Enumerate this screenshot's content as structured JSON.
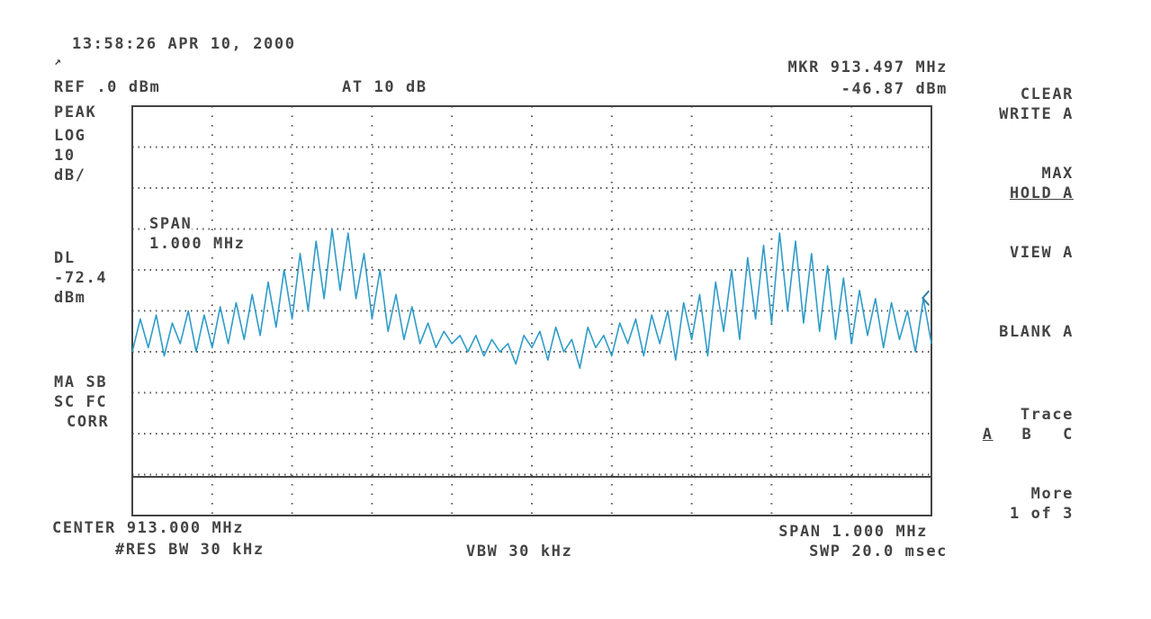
{
  "header": {
    "timestamp": "13:58:26 APR 10, 2000",
    "ref_level": "REF .0 dBm",
    "attenuation": "AT 10 dB",
    "marker_freq": "MKR 913.497 MHz",
    "marker_level": "-46.87 dBm"
  },
  "left_panel": {
    "detector": "PEAK",
    "scale_line1": "LOG",
    "scale_line2": "10",
    "scale_line3": "dB/",
    "span_line1": "SPAN",
    "span_line2": "1.000 MHz",
    "dl_line1": "DL",
    "dl_line2": "-72.4",
    "dl_line3": "dBm",
    "flags_line1": "MA SB",
    "flags_line2": "SC FC",
    "flags_line3": "CORR"
  },
  "footer": {
    "center": "CENTER 913.000 MHz",
    "res_bw": "#RES BW 30 kHz",
    "vbw": "VBW 30 kHz",
    "span": "SPAN 1.000 MHz",
    "sweep": "SWP 20.0 msec"
  },
  "softkeys": {
    "clear_write_1": "CLEAR",
    "clear_write_2": "WRITE A",
    "max_hold_1": "MAX",
    "max_hold_2": "HOLD A",
    "view": "VIEW A",
    "blank": "BLANK A",
    "trace_1": "Trace",
    "trace_a": "A",
    "trace_b": "B",
    "trace_c": "C",
    "more_1": "More",
    "more_2": "1 of 3"
  },
  "colors": {
    "trace": "#2e9cc8",
    "frame": "#444444",
    "grid": "#555555"
  },
  "chart_data": {
    "type": "line",
    "xlabel": "",
    "ylabel": "",
    "xlim": [
      912.5,
      913.5
    ],
    "ylim": [
      -100,
      0
    ],
    "x_unit": "MHz",
    "y_unit": "dBm",
    "display_line": -72.4,
    "marker": {
      "x": 913.497,
      "y": -46.87
    },
    "series": [
      {
        "x": [
          912.5,
          912.51,
          912.52,
          912.53,
          912.54,
          912.55,
          912.56,
          912.57,
          912.58,
          912.59,
          912.6,
          912.61,
          912.62,
          912.63,
          912.64,
          912.65,
          912.66,
          912.67,
          912.68,
          912.69,
          912.7,
          912.71,
          912.72,
          912.73,
          912.74,
          912.75,
          912.76,
          912.77,
          912.78,
          912.79,
          912.8,
          912.81,
          912.82,
          912.83,
          912.84,
          912.85,
          912.86,
          912.87,
          912.88,
          912.89,
          912.9,
          912.91,
          912.92,
          912.93,
          912.94,
          912.95,
          912.96,
          912.97,
          912.98,
          912.99,
          913.0,
          913.01,
          913.02,
          913.03,
          913.04,
          913.05,
          913.06,
          913.07,
          913.08,
          913.09,
          913.1,
          913.11,
          913.12,
          913.13,
          913.14,
          913.15,
          913.16,
          913.17,
          913.18,
          913.19,
          913.2,
          913.21,
          913.22,
          913.23,
          913.24,
          913.25,
          913.26,
          913.27,
          913.28,
          913.29,
          913.3,
          913.31,
          913.32,
          913.33,
          913.34,
          913.35,
          913.36,
          913.37,
          913.38,
          913.39,
          913.4,
          913.41,
          913.42,
          913.43,
          913.44,
          913.45,
          913.46,
          913.47,
          913.48,
          913.49,
          913.5
        ],
        "values": [
          -60,
          -52,
          -59,
          -51,
          -61,
          -53,
          -58,
          -50,
          -60,
          -51,
          -59,
          -49,
          -58,
          -48,
          -57,
          -46,
          -56,
          -43,
          -54,
          -40,
          -52,
          -36,
          -50,
          -33,
          -47,
          -30,
          -45,
          -31,
          -47,
          -36,
          -52,
          -40,
          -55,
          -46,
          -57,
          -49,
          -58,
          -53,
          -59,
          -55,
          -58,
          -56,
          -60,
          -56,
          -61,
          -57,
          -60,
          -58,
          -63,
          -56,
          -59,
          -55,
          -62,
          -54,
          -60,
          -57,
          -64,
          -54,
          -59,
          -56,
          -61,
          -53,
          -58,
          -52,
          -61,
          -51,
          -58,
          -50,
          -62,
          -48,
          -57,
          -46,
          -61,
          -43,
          -55,
          -40,
          -57,
          -37,
          -52,
          -34,
          -53,
          -31,
          -50,
          -33,
          -53,
          -36,
          -55,
          -39,
          -57,
          -42,
          -58,
          -45,
          -56,
          -47,
          -59,
          -48,
          -57,
          -50,
          -60,
          -47,
          -58
        ]
      }
    ]
  }
}
